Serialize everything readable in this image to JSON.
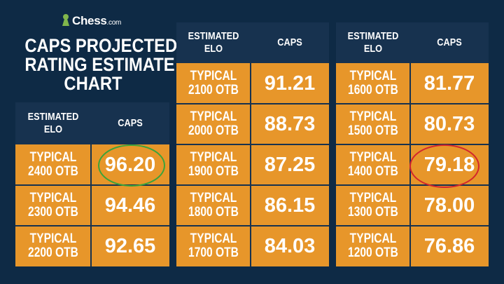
{
  "brand": {
    "name": "Chess",
    "suffix": ".com"
  },
  "title": [
    "CAPS PROJECTED",
    "RATING ESTIMATE",
    "CHART"
  ],
  "colors": {
    "background": "#0e2a45",
    "header": "#17324f",
    "row": "#e7962a",
    "highlight_green": "#3ca33a",
    "highlight_red": "#d3252c"
  },
  "header": {
    "elo": [
      "ESTIMATED",
      "ELO"
    ],
    "caps": "CAPS"
  },
  "tables": [
    {
      "rows": [
        {
          "label": [
            "TYPICAL",
            "2400 OTB"
          ],
          "caps": "96.20"
        },
        {
          "label": [
            "TYPICAL",
            "2300 OTB"
          ],
          "caps": "94.46"
        },
        {
          "label": [
            "TYPICAL",
            "2200 OTB"
          ],
          "caps": "92.65"
        }
      ]
    },
    {
      "rows": [
        {
          "label": [
            "TYPICAL",
            "2100 OTB"
          ],
          "caps": "91.21"
        },
        {
          "label": [
            "TYPICAL",
            "2000 OTB"
          ],
          "caps": "88.73"
        },
        {
          "label": [
            "TYPICAL",
            "1900 OTB"
          ],
          "caps": "87.25"
        },
        {
          "label": [
            "TYPICAL",
            "1800 OTB"
          ],
          "caps": "86.15"
        },
        {
          "label": [
            "TYPICAL",
            "1700 OTB"
          ],
          "caps": "84.03"
        }
      ]
    },
    {
      "rows": [
        {
          "label": [
            "TYPICAL",
            "1600 OTB"
          ],
          "caps": "81.77"
        },
        {
          "label": [
            "TYPICAL",
            "1500 OTB"
          ],
          "caps": "80.73"
        },
        {
          "label": [
            "TYPICAL",
            "1400 OTB"
          ],
          "caps": "79.18"
        },
        {
          "label": [
            "TYPICAL",
            "1300 OTB"
          ],
          "caps": "78.00"
        },
        {
          "label": [
            "TYPICAL",
            "1200 OTB"
          ],
          "caps": "76.86"
        }
      ]
    }
  ]
}
